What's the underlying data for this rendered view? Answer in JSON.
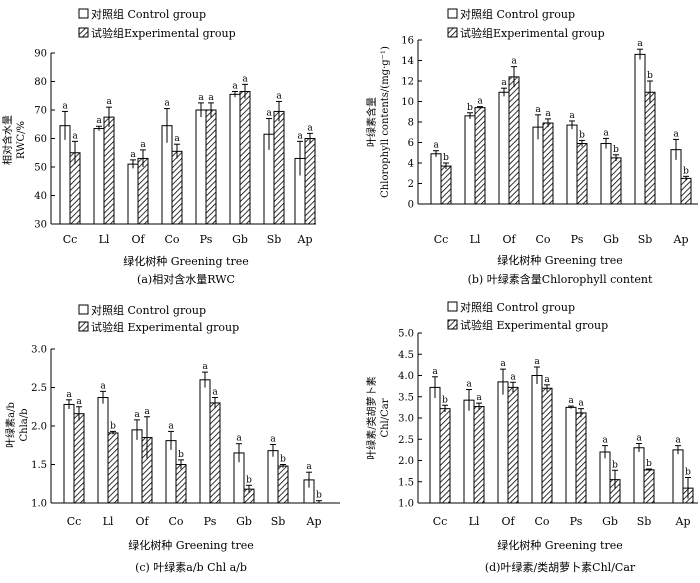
{
  "legend": {
    "control": "对照组 Control group",
    "experimental": "试验组Experimental group",
    "experimental_alt": "试验组 Experimental group"
  },
  "colors": {
    "bar_stroke": "#000000",
    "control_fill": "#ffffff",
    "hatch": "#000000"
  },
  "chart_data": [
    {
      "type": "bar",
      "id": "a",
      "title": "(a)相对含水量RWC",
      "xlabel": "绿化树种 Greening tree",
      "ylabel_cn": "相对含水量",
      "ylabel_en": "RWC/%",
      "ylim": [
        30,
        90
      ],
      "ticks": [
        30,
        40,
        50,
        60,
        70,
        80,
        90
      ],
      "tick_labels": [
        "30",
        "40",
        "50",
        "60",
        "70",
        "80",
        "90"
      ],
      "categories": [
        "Cc",
        "Ll",
        "Of",
        "Co",
        "Ps",
        "Gb",
        "Sb",
        "Ap"
      ],
      "series": [
        {
          "name": "Control group",
          "values": [
            64.5,
            63.5,
            51.0,
            64.5,
            70.0,
            75.5,
            61.5,
            53.0
          ],
          "errors": [
            5.0,
            0.8,
            1.5,
            6.0,
            2.5,
            1.0,
            5.5,
            6.0
          ],
          "labels": [
            "a",
            "a",
            "a",
            "a",
            "a",
            "a",
            "a",
            "a"
          ]
        },
        {
          "name": "Experimental group",
          "values": [
            55.0,
            67.5,
            53.0,
            55.5,
            70.0,
            76.5,
            69.5,
            60.0
          ],
          "errors": [
            4.0,
            3.5,
            3.0,
            2.5,
            2.5,
            2.5,
            3.5,
            1.8
          ],
          "labels": [
            "a",
            "a",
            "a",
            "a",
            "a",
            "a",
            "a",
            "a"
          ]
        }
      ]
    },
    {
      "type": "bar",
      "id": "b",
      "title": "(b) 叶绿素含量Chlorophyll content",
      "xlabel": "绿化树种 Greening tree",
      "ylabel_cn": "叶绿素含量",
      "ylabel_en": "Chlorophyll contents/(mg·g⁻¹)",
      "ylim": [
        0,
        16
      ],
      "ticks": [
        0,
        2,
        4,
        6,
        8,
        10,
        12,
        14,
        16
      ],
      "tick_labels": [
        "0",
        "2",
        "4",
        "6",
        "8",
        "10",
        "12",
        "14",
        "16"
      ],
      "categories": [
        "Cc",
        "Ll",
        "Of",
        "Co",
        "Ps",
        "Gb",
        "Sb",
        "Ap"
      ],
      "series": [
        {
          "name": "Control group",
          "values": [
            4.9,
            8.6,
            10.9,
            7.5,
            7.7,
            5.9,
            14.6,
            5.3
          ],
          "errors": [
            0.3,
            0.3,
            0.4,
            1.2,
            0.4,
            0.5,
            0.5,
            1.0
          ],
          "labels": [
            "a",
            "b",
            "a",
            "a",
            "a",
            "a",
            "a",
            "a"
          ]
        },
        {
          "name": "Experimental group",
          "values": [
            3.7,
            9.4,
            12.4,
            7.9,
            5.9,
            4.5,
            10.9,
            2.5
          ],
          "errors": [
            0.3,
            0.1,
            1.0,
            0.4,
            0.3,
            0.3,
            1.1,
            0.2
          ],
          "labels": [
            "b",
            "a",
            "a",
            "a",
            "b",
            "b",
            "b",
            "b"
          ]
        }
      ]
    },
    {
      "type": "bar",
      "id": "c",
      "title": "(c) 叶绿素a/b Chl a/b",
      "xlabel": "绿化树种 Greening tree",
      "ylabel_cn": "叶绿素a/b",
      "ylabel_en": "Chla/b",
      "ylim": [
        1.0,
        3.0
      ],
      "ticks": [
        1.0,
        1.5,
        2.0,
        2.5,
        3.0
      ],
      "tick_labels": [
        "1.0",
        "1.5",
        "2.0",
        "2.5",
        "3.0"
      ],
      "categories": [
        "Cc",
        "Ll",
        "Of",
        "Co",
        "Ps",
        "Gb",
        "Sb",
        "Ap"
      ],
      "series": [
        {
          "name": "Control group",
          "values": [
            2.28,
            2.37,
            1.95,
            1.81,
            2.6,
            1.65,
            1.68,
            1.3
          ],
          "errors": [
            0.06,
            0.08,
            0.13,
            0.12,
            0.1,
            0.12,
            0.08,
            0.1
          ],
          "labels": [
            "a",
            "a",
            "a",
            "a",
            "a",
            "a",
            "a",
            "a"
          ]
        },
        {
          "name": "Experimental group",
          "values": [
            2.16,
            1.91,
            1.85,
            1.5,
            2.3,
            1.18,
            1.48,
            0.98
          ],
          "errors": [
            0.09,
            0.02,
            0.27,
            0.06,
            0.07,
            0.05,
            0.02,
            0.05
          ],
          "labels": [
            "a",
            "b",
            "a",
            "b",
            "a",
            "b",
            "b",
            "b"
          ]
        }
      ]
    },
    {
      "type": "bar",
      "id": "d",
      "title": "(d)叶绿素/类胡萝卜素Chl/Car",
      "xlabel": "绿化树种 Greening tree",
      "ylabel_cn": "叶绿素/类胡萝卜素",
      "ylabel_en": "Chl/Car",
      "ylim": [
        1.0,
        5.0
      ],
      "ticks": [
        1.0,
        1.5,
        2.0,
        2.5,
        3.0,
        3.5,
        4.0,
        4.5,
        5.0
      ],
      "tick_labels": [
        "1.0",
        "1.5",
        "2.0",
        "2.5",
        "3.0",
        "3.5",
        "4.0",
        "4.5",
        "5.0"
      ],
      "categories": [
        "Cc",
        "Ll",
        "Of",
        "Co",
        "Ps",
        "Gb",
        "Sb",
        "Ap"
      ],
      "series": [
        {
          "name": "Control group",
          "values": [
            3.72,
            3.42,
            3.85,
            4.0,
            3.25,
            2.2,
            2.3,
            2.25
          ],
          "errors": [
            0.25,
            0.25,
            0.3,
            0.2,
            0.03,
            0.15,
            0.1,
            0.1
          ],
          "labels": [
            "a",
            "a",
            "a",
            "a",
            "a",
            "a",
            "a",
            "a"
          ]
        },
        {
          "name": "Experimental group",
          "values": [
            3.22,
            3.27,
            3.72,
            3.7,
            3.12,
            1.55,
            1.78,
            1.35
          ],
          "errors": [
            0.08,
            0.08,
            0.12,
            0.08,
            0.1,
            0.22,
            0.02,
            0.25
          ],
          "labels": [
            "b",
            "a",
            "a",
            "a",
            "a",
            "b",
            "b",
            "b"
          ]
        }
      ]
    }
  ]
}
